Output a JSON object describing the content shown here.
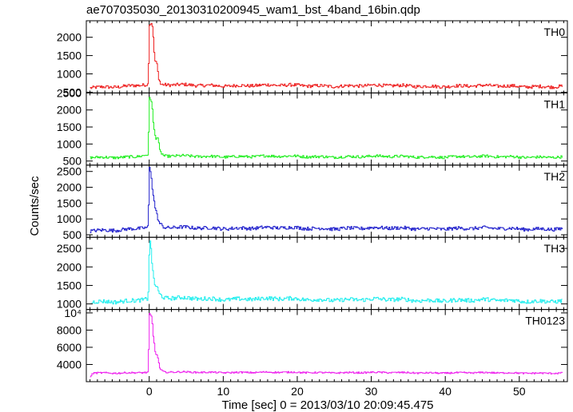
{
  "chart_data": {
    "type": "line",
    "title": "ae707035030_20130310200945_wam1_bst_4band_16bin.qdp",
    "xlabel": "Time [sec] 0 = 2013/03/10 20:09:45.475",
    "ylabel": "Counts/sec",
    "xlim": [
      -8.5,
      56.5
    ],
    "xticks": [
      0,
      10,
      20,
      30,
      40,
      50
    ],
    "xtick_labels": [
      "0",
      "10",
      "20",
      "30",
      "40",
      "50"
    ],
    "grid": false,
    "panels": [
      {
        "name": "TH0",
        "color": "#ee2020",
        "ylim": [
          480,
          2450
        ],
        "yticks": [
          500,
          1000,
          1500,
          2000
        ],
        "ytick_labels": [
          "500",
          "1000",
          "1500",
          "2000"
        ],
        "x_start": -8.0,
        "baseline": 660,
        "noise": 45,
        "keypoints": [
          [
            -8,
            620
          ],
          [
            -2,
            690
          ],
          [
            -0.2,
            720
          ],
          [
            0.0,
            2350
          ],
          [
            0.25,
            2380
          ],
          [
            0.4,
            2300
          ],
          [
            0.55,
            1800
          ],
          [
            0.7,
            1350
          ],
          [
            1.0,
            1250
          ],
          [
            1.2,
            900
          ],
          [
            1.5,
            700
          ],
          [
            3,
            690
          ],
          [
            56,
            660
          ]
        ]
      },
      {
        "name": "TH1",
        "color": "#22ee22",
        "ylim": [
          380,
          2500
        ],
        "yticks": [
          500,
          1000,
          1500,
          2000,
          2500
        ],
        "ytick_labels": [
          "500",
          "1000",
          "1500",
          "2000",
          "2500"
        ],
        "x_start": -8.0,
        "baseline": 620,
        "noise": 40,
        "keypoints": [
          [
            -8,
            600
          ],
          [
            -2,
            630
          ],
          [
            -0.2,
            700
          ],
          [
            0.0,
            2350
          ],
          [
            0.3,
            2250
          ],
          [
            0.5,
            1600
          ],
          [
            0.8,
            1150
          ],
          [
            1.1,
            1200
          ],
          [
            1.4,
            760
          ],
          [
            2,
            640
          ],
          [
            56,
            620
          ]
        ]
      },
      {
        "name": "TH2",
        "color": "#2020cc",
        "ylim": [
          420,
          2700
        ],
        "yticks": [
          500,
          1000,
          1500,
          2000,
          2500
        ],
        "ytick_labels": [
          "500",
          "1000",
          "1500",
          "2000",
          "2500"
        ],
        "x_start": -8.0,
        "baseline": 690,
        "noise": 55,
        "keypoints": [
          [
            -8,
            620
          ],
          [
            -2,
            700
          ],
          [
            -0.2,
            750
          ],
          [
            0.0,
            2600
          ],
          [
            0.2,
            2450
          ],
          [
            0.4,
            1900
          ],
          [
            0.7,
            1400
          ],
          [
            1.0,
            1100
          ],
          [
            1.3,
            850
          ],
          [
            2,
            720
          ],
          [
            56,
            690
          ]
        ]
      },
      {
        "name": "TH3",
        "color": "#22eeee",
        "ylim": [
          850,
          2800
        ],
        "yticks": [
          1000,
          1500,
          2000,
          2500
        ],
        "ytick_labels": [
          "1000",
          "1500",
          "2000",
          "2500"
        ],
        "x_start": -7.8,
        "baseline": 1080,
        "noise": 55,
        "keypoints": [
          [
            -7.8,
            1050
          ],
          [
            -2,
            1100
          ],
          [
            -0.2,
            1150
          ],
          [
            0.0,
            2750
          ],
          [
            0.2,
            2500
          ],
          [
            0.4,
            1900
          ],
          [
            0.7,
            1500
          ],
          [
            1.0,
            1450
          ],
          [
            1.3,
            1250
          ],
          [
            2,
            1150
          ],
          [
            56,
            1080
          ]
        ]
      },
      {
        "name": "TH0123",
        "color": "#ee22ee",
        "ylim": [
          2000,
          10400
        ],
        "yticks": [
          4000,
          6000,
          8000,
          10000
        ],
        "ytick_labels": [
          "4000",
          "6000",
          "8000",
          "10⁴"
        ],
        "x_start": -8.0,
        "baseline": 3000,
        "noise": 90,
        "keypoints": [
          [
            -8,
            2600
          ],
          [
            -7.6,
            3000
          ],
          [
            -2,
            3050
          ],
          [
            -0.2,
            3100
          ],
          [
            0.0,
            9900
          ],
          [
            0.3,
            9500
          ],
          [
            0.5,
            7300
          ],
          [
            0.8,
            5200
          ],
          [
            1.1,
            4900
          ],
          [
            1.4,
            3400
          ],
          [
            2,
            3100
          ],
          [
            56,
            3000
          ]
        ]
      }
    ]
  }
}
